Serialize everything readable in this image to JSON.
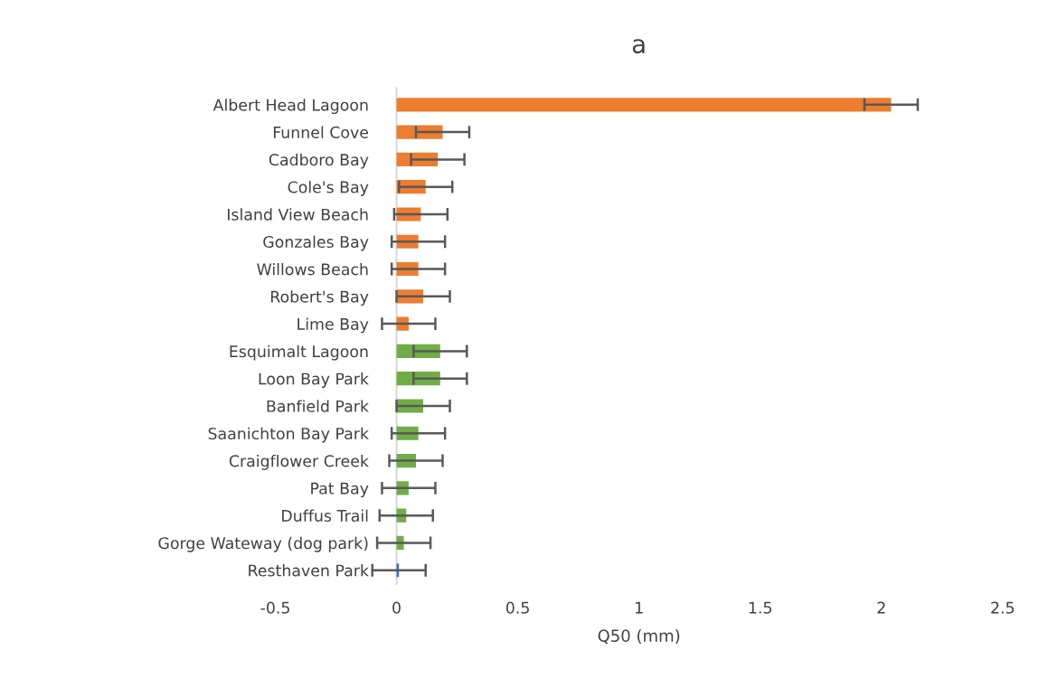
{
  "chart_data": {
    "type": "bar",
    "orientation": "horizontal",
    "title": "a",
    "xlabel": "Q50 (mm)",
    "categories": [
      "Albert Head Lagoon",
      "Funnel Cove",
      "Cadboro Bay",
      "Cole's Bay",
      "Island View Beach",
      "Gonzales Bay",
      "Willows Beach",
      "Robert's Bay",
      "Lime Bay",
      "Esquimalt Lagoon",
      "Loon Bay Park",
      "Banfield Park",
      "Saanichton Bay Park",
      "Craigflower Creek",
      "Pat Bay",
      "Duffus Trail",
      "Gorge Wateway (dog park)",
      "Resthaven Park"
    ],
    "values": [
      2.04,
      0.19,
      0.17,
      0.12,
      0.1,
      0.09,
      0.09,
      0.11,
      0.05,
      0.18,
      0.18,
      0.11,
      0.09,
      0.08,
      0.05,
      0.04,
      0.03,
      0.01
    ],
    "errors": [
      0.11,
      0.11,
      0.11,
      0.11,
      0.11,
      0.11,
      0.11,
      0.11,
      0.11,
      0.11,
      0.11,
      0.11,
      0.11,
      0.11,
      0.11,
      0.11,
      0.11,
      0.11
    ],
    "colors": [
      "#ed7d31",
      "#ed7d31",
      "#ed7d31",
      "#ed7d31",
      "#ed7d31",
      "#ed7d31",
      "#ed7d31",
      "#ed7d31",
      "#ed7d31",
      "#70ad47",
      "#70ad47",
      "#70ad47",
      "#70ad47",
      "#70ad47",
      "#70ad47",
      "#70ad47",
      "#70ad47",
      "#4472c4"
    ],
    "xlim": [
      -0.5,
      2.5
    ],
    "xticks": [
      {
        "value": -0.5,
        "label": "-0.5"
      },
      0,
      0.5,
      1,
      1.5,
      2,
      2.5
    ],
    "grid": false
  }
}
